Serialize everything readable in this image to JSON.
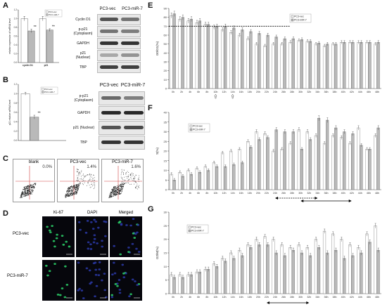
{
  "panels": {
    "A": "A",
    "B": "B",
    "C": "C",
    "D": "D",
    "E": "E",
    "F": "F",
    "G": "G"
  },
  "panelA": {
    "chart_data": {
      "type": "bar",
      "categories": [
        "cyclin D1",
        "p21"
      ],
      "series": [
        {
          "name": "PC3-vec",
          "values": [
            1.0,
            1.0
          ],
          "err": [
            0.05,
            0.05
          ]
        },
        {
          "name": "PC3-miR-7",
          "values": [
            0.72,
            0.74
          ],
          "err": [
            0.04,
            0.03
          ]
        }
      ],
      "ylabel": "relative expression of mRNA level",
      "ylim": [
        0,
        1.2
      ],
      "yticks": [
        "1.2",
        "1.0",
        "0.8",
        "0.6",
        "0.4",
        "0.2",
        "0.0"
      ],
      "stars": "**",
      "colors": {
        "vec": "#ffffff",
        "mir": "#c8c8c8"
      }
    },
    "blot": {
      "cols": [
        "PC3-vec",
        "PC3-miR-7"
      ],
      "rows": [
        "Cyclin D1",
        "p-p21\n(Cytoplasm)",
        "GAPDH",
        "p21\n(Nuclear)",
        "TBP"
      ]
    }
  },
  "panelB": {
    "chart_data": {
      "type": "bar",
      "categories": [
        ""
      ],
      "series": [
        {
          "name": "PC3-vec",
          "values": [
            1.0
          ],
          "err": [
            0.03
          ]
        },
        {
          "name": "PC3-miR-7",
          "values": [
            0.5
          ],
          "err": [
            0.04
          ]
        }
      ],
      "ylabel": "p21 relative mRNA level",
      "ylim": [
        0,
        1.2
      ],
      "yticks": [
        "1.2",
        "1.0",
        "0.8",
        "0.6",
        "0.4",
        "0.2",
        "0.0"
      ],
      "stars": "**"
    },
    "blot": {
      "cols": [
        "PC3-vec",
        "PC3-miR-7"
      ],
      "rows": [
        "p-p21\n(Cytoplasm)",
        "GAPDH",
        "p21 (Nuclear)",
        "TBP"
      ]
    }
  },
  "panelC": {
    "plots": [
      {
        "title": "blank",
        "pct": "0.0%"
      },
      {
        "title": "PC3-vec",
        "pct": "1.4%"
      },
      {
        "title": "PC3-miR-7",
        "pct": "1.6%"
      }
    ]
  },
  "panelD": {
    "cols": [
      "Ki-67",
      "DAPI",
      "Merged"
    ],
    "rows": [
      "PC3-vec",
      "PC3-miR-7"
    ]
  },
  "chartE": {
    "chart_data": {
      "type": "bar",
      "categories": [
        "0h",
        "2h",
        "4h",
        "6h",
        "8h",
        "10h",
        "12h",
        "14h",
        "16h",
        "18h",
        "20h",
        "22h",
        "24h",
        "26h",
        "28h",
        "30h",
        "32h",
        "34h",
        "36h",
        "38h",
        "40h",
        "42h",
        "44h",
        "46h",
        "48h"
      ],
      "series": [
        {
          "name": "PC3-vec",
          "values": [
            82,
            78,
            76,
            74,
            72,
            69,
            66,
            63,
            60,
            56,
            50,
            48,
            50,
            50,
            52,
            54,
            53,
            50,
            48,
            50,
            52,
            52,
            52,
            52,
            50
          ]
        },
        {
          "name": "PC3-miR-7",
          "values": [
            84,
            80,
            78,
            76,
            72,
            70,
            70,
            68,
            66,
            64,
            62,
            60,
            58,
            56,
            56,
            55,
            53,
            51,
            50,
            50,
            52,
            52,
            52,
            52,
            52
          ]
        }
      ],
      "ylabel": "G0/G1(%)",
      "ylim": [
        0,
        90
      ],
      "yticks": [
        0,
        10,
        20,
        30,
        40,
        50,
        60,
        70,
        80,
        90
      ],
      "refline": 70
    }
  },
  "chartF": {
    "chart_data": {
      "type": "bar",
      "categories": [
        "0h",
        "2h",
        "4h",
        "6h",
        "8h",
        "10h",
        "12h",
        "14h",
        "16h",
        "18h",
        "20h",
        "22h",
        "24h",
        "26h",
        "28h",
        "30h",
        "32h",
        "34h",
        "36h",
        "38h",
        "40h",
        "42h",
        "44h",
        "46h",
        "48h"
      ],
      "series": [
        {
          "name": "PC3-vec",
          "values": [
            8,
            9,
            10,
            11,
            12,
            14,
            19,
            20,
            21,
            25,
            30,
            29,
            20,
            21,
            24,
            31,
            30,
            28,
            24,
            28,
            27,
            24,
            32,
            21,
            28
          ]
        },
        {
          "name": "PC3-miR-7",
          "values": [
            5,
            7,
            8,
            9,
            10,
            12,
            12,
            13,
            14,
            22,
            26,
            27,
            31,
            30,
            30,
            21,
            26,
            37,
            36,
            32,
            30,
            29,
            23,
            21,
            32
          ]
        }
      ],
      "ylabel": "S(%)",
      "ylim": [
        0,
        40
      ],
      "yticks": [
        0,
        5,
        10,
        15,
        20,
        25,
        30,
        35,
        40
      ]
    }
  },
  "chartG": {
    "chart_data": {
      "type": "bar",
      "categories": [
        "0h",
        "2h",
        "4h",
        "6h",
        "8h",
        "10h",
        "12h",
        "14h",
        "16h",
        "18h",
        "20h",
        "22h",
        "24h",
        "26h",
        "28h",
        "30h",
        "32h",
        "34h",
        "36h",
        "38h",
        "40h",
        "42h",
        "44h",
        "46h",
        "48h"
      ],
      "series": [
        {
          "name": "PC3-vec",
          "values": [
            7,
            7,
            7,
            8,
            9,
            11,
            13,
            15,
            16,
            18,
            20,
            21,
            20,
            18,
            17,
            18,
            17,
            20,
            23,
            22,
            20,
            18,
            17,
            22,
            25
          ]
        },
        {
          "name": "PC3-miR-7",
          "values": [
            6,
            6,
            7,
            8,
            9,
            10,
            12,
            13,
            14,
            17,
            18,
            18,
            15,
            14,
            16,
            15,
            14,
            17,
            15,
            16,
            13,
            14,
            15,
            19,
            16
          ]
        }
      ],
      "ylabel": "G2/M(%)",
      "ylim": [
        0,
        30
      ],
      "yticks": [
        0,
        5,
        10,
        15,
        20,
        25,
        30
      ]
    }
  },
  "colors": {
    "vec": "#ffffff",
    "mir": "#b9b9b9",
    "edge": "#666666",
    "red": "#d04040",
    "green": "#2dd36a",
    "blue": "#2b3aa8"
  }
}
